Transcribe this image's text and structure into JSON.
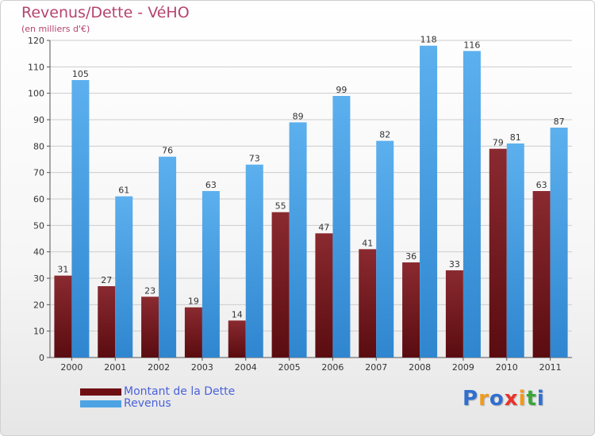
{
  "header": {
    "title": "Revenus/Dette - VéHO",
    "subtitle": "(en milliers d'€)"
  },
  "chart_data": {
    "type": "bar",
    "categories": [
      "2000",
      "2001",
      "2002",
      "2003",
      "2004",
      "2005",
      "2006",
      "2007",
      "2008",
      "2009",
      "2010",
      "2011"
    ],
    "series": [
      {
        "name": "Montant de la Dette",
        "values": [
          31,
          27,
          23,
          19,
          14,
          55,
          47,
          41,
          36,
          33,
          79,
          63
        ],
        "color": "#7a1e24"
      },
      {
        "name": "Revenus",
        "values": [
          105,
          61,
          76,
          63,
          73,
          89,
          99,
          82,
          118,
          116,
          81,
          87
        ],
        "color": "#4da3e4"
      }
    ],
    "ylim": [
      0,
      120
    ],
    "yticks": [
      0,
      10,
      20,
      30,
      40,
      50,
      60,
      70,
      80,
      90,
      100,
      110,
      120
    ],
    "grid": true,
    "data_labels": true,
    "legend_position": "bottom-left"
  },
  "legend": {
    "items": [
      {
        "label": "Montant de la Dette",
        "color": "#6e0f14"
      },
      {
        "label": "Revenus",
        "color": "#4da3e4"
      }
    ]
  },
  "brand": {
    "letters": [
      "P",
      "r",
      "o",
      "x",
      "i",
      "t",
      "i"
    ],
    "colors": [
      "#2f6fd0",
      "#f09a1e",
      "#2f6fd0",
      "#e8332a",
      "#f09a1e",
      "#3aa63a",
      "#2f6fd0"
    ]
  },
  "colors": {
    "title": "#b5446e",
    "grid": "#cccccc",
    "axis_text": "#333333"
  }
}
